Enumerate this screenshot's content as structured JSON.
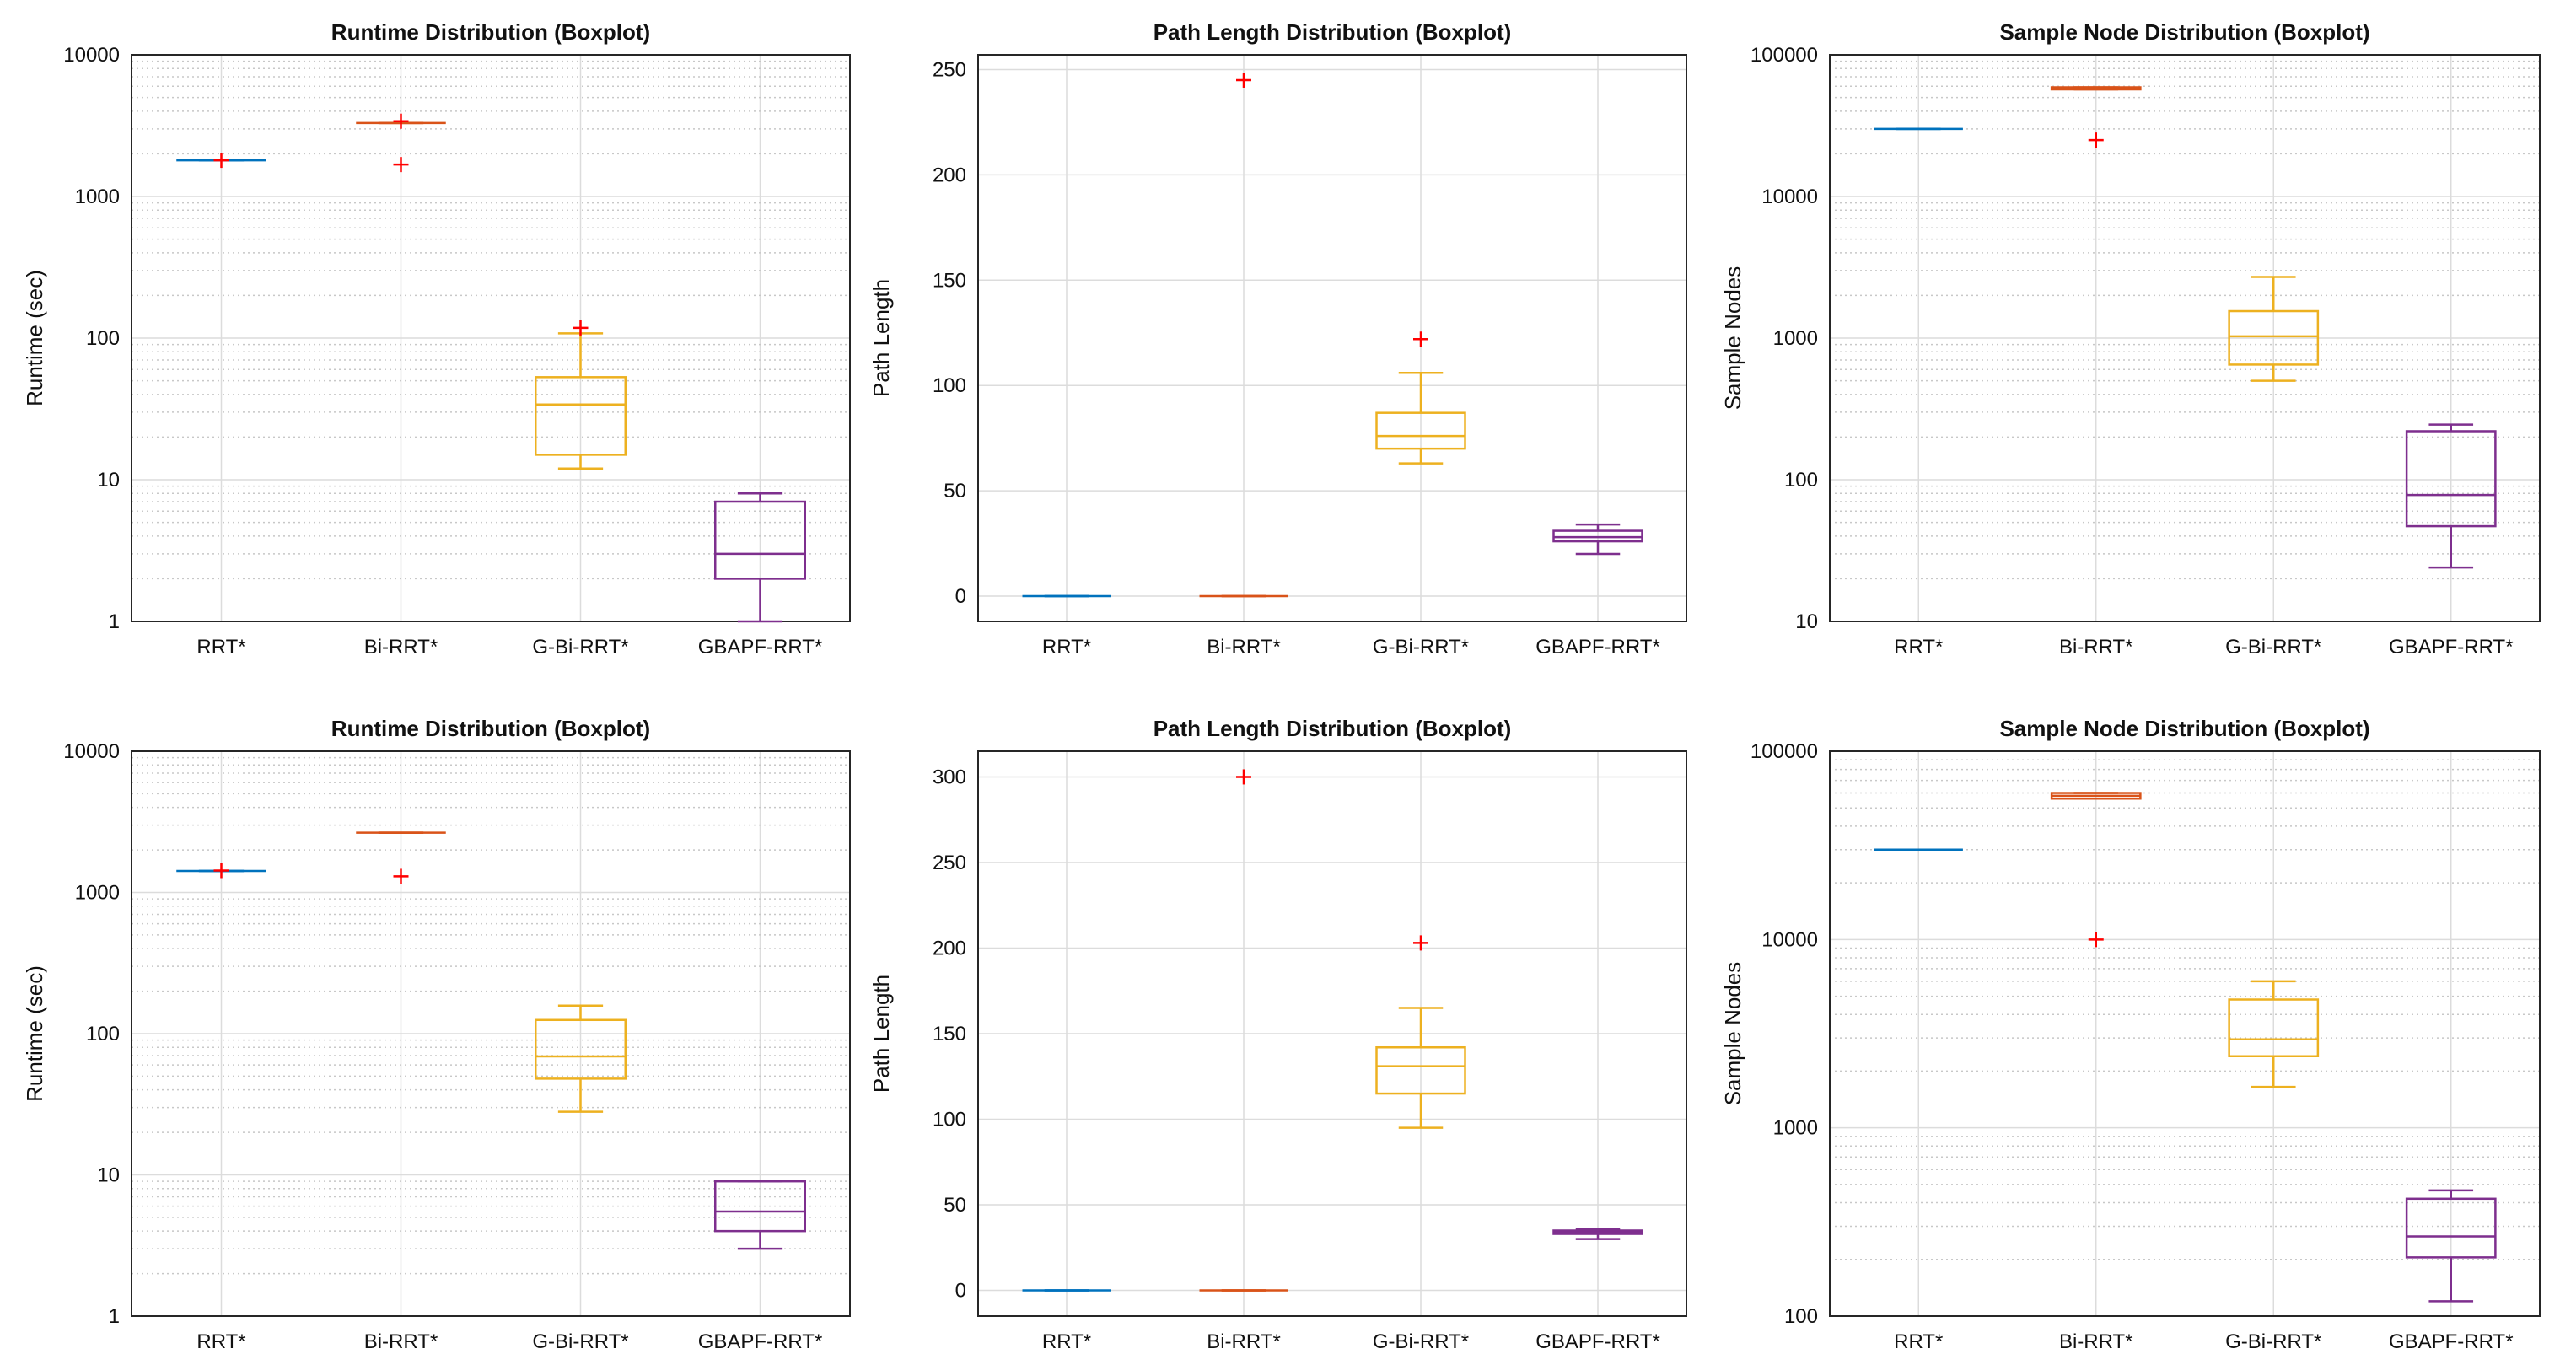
{
  "chart_data": [
    {
      "type": "box",
      "title": "Runtime Distribution (Boxplot)",
      "ylabel": "Runtime (sec)",
      "yscale": "log",
      "ylim": [
        1,
        10000
      ],
      "yticks": [
        1,
        10,
        100,
        1000,
        10000
      ],
      "ytick_labels": [
        "1",
        "10",
        "100",
        "1000",
        "10000"
      ],
      "grid": true,
      "categories": [
        "RRT*",
        "Bi-RRT*",
        "G-Bi-RRT*",
        "GBAPF-RRT*"
      ],
      "boxes": [
        {
          "q1": 1800,
          "median": 1800,
          "q3": 1800,
          "whisker_low": 1800,
          "whisker_high": 1800,
          "outliers": [
            1800
          ]
        },
        {
          "q1": 3300,
          "median": 3300,
          "q3": 3300,
          "whisker_low": 3300,
          "whisker_high": 3300,
          "outliers": [
            1680,
            3400
          ]
        },
        {
          "q1": 15,
          "median": 34,
          "q3": 53,
          "whisker_low": 12,
          "whisker_high": 108,
          "outliers": [
            118
          ]
        },
        {
          "q1": 2,
          "median": 3,
          "q3": 7,
          "whisker_low": 1,
          "whisker_high": 8,
          "outliers": []
        }
      ]
    },
    {
      "type": "box",
      "title": "Path Length Distribution (Boxplot)",
      "ylabel": "Path Length",
      "yscale": "linear",
      "ylim": [
        -12,
        257
      ],
      "yticks": [
        0,
        50,
        100,
        150,
        200,
        250
      ],
      "ytick_labels": [
        "0",
        "50",
        "100",
        "150",
        "200",
        "250"
      ],
      "grid": true,
      "categories": [
        "RRT*",
        "Bi-RRT*",
        "G-Bi-RRT*",
        "GBAPF-RRT*"
      ],
      "boxes": [
        {
          "q1": 0,
          "median": 0,
          "q3": 0,
          "whisker_low": 0,
          "whisker_high": 0,
          "outliers": []
        },
        {
          "q1": 0,
          "median": 0,
          "q3": 0,
          "whisker_low": 0,
          "whisker_high": 0,
          "outliers": [
            245
          ]
        },
        {
          "q1": 70,
          "median": 76,
          "q3": 87,
          "whisker_low": 63,
          "whisker_high": 106,
          "outliers": [
            122
          ]
        },
        {
          "q1": 26,
          "median": 28,
          "q3": 31,
          "whisker_low": 20,
          "whisker_high": 34,
          "outliers": []
        }
      ]
    },
    {
      "type": "box",
      "title": "Sample Node Distribution (Boxplot)",
      "ylabel": "Sample Nodes",
      "yscale": "log",
      "ylim": [
        10,
        100000
      ],
      "yticks": [
        10,
        100,
        1000,
        10000,
        100000
      ],
      "ytick_labels": [
        "10",
        "100",
        "1000",
        "10000",
        "100000"
      ],
      "grid": true,
      "categories": [
        "RRT*",
        "Bi-RRT*",
        "G-Bi-RRT*",
        "GBAPF-RRT*"
      ],
      "boxes": [
        {
          "q1": 30000,
          "median": 30000,
          "q3": 30000,
          "whisker_low": 30000,
          "whisker_high": 30000,
          "outliers": []
        },
        {
          "q1": 57000,
          "median": 58000,
          "q3": 59000,
          "whisker_low": 57000,
          "whisker_high": 59000,
          "outliers": [
            25000
          ]
        },
        {
          "q1": 650,
          "median": 1030,
          "q3": 1550,
          "whisker_low": 500,
          "whisker_high": 2700,
          "outliers": []
        },
        {
          "q1": 47,
          "median": 78,
          "q3": 220,
          "whisker_low": 24,
          "whisker_high": 245,
          "outliers": []
        }
      ]
    },
    {
      "type": "box",
      "title": "Runtime Distribution (Boxplot)",
      "ylabel": "Runtime (sec)",
      "yscale": "log",
      "ylim": [
        1,
        10000
      ],
      "yticks": [
        1,
        10,
        100,
        1000,
        10000
      ],
      "ytick_labels": [
        "1",
        "10",
        "100",
        "1000",
        "10000"
      ],
      "grid": true,
      "categories": [
        "RRT*",
        "Bi-RRT*",
        "G-Bi-RRT*",
        "GBAPF-RRT*"
      ],
      "boxes": [
        {
          "q1": 1420,
          "median": 1420,
          "q3": 1420,
          "whisker_low": 1420,
          "whisker_high": 1420,
          "outliers": [
            1430
          ]
        },
        {
          "q1": 2650,
          "median": 2650,
          "q3": 2650,
          "whisker_low": 2650,
          "whisker_high": 2650,
          "outliers": [
            1300
          ]
        },
        {
          "q1": 48,
          "median": 69,
          "q3": 125,
          "whisker_low": 28,
          "whisker_high": 158,
          "outliers": []
        },
        {
          "q1": 4,
          "median": 5.5,
          "q3": 9,
          "whisker_low": 3,
          "whisker_high": 9,
          "outliers": []
        }
      ]
    },
    {
      "type": "box",
      "title": "Path Length Distribution (Boxplot)",
      "ylabel": "Path Length",
      "yscale": "linear",
      "ylim": [
        -15,
        315
      ],
      "yticks": [
        0,
        50,
        100,
        150,
        200,
        250,
        300
      ],
      "ytick_labels": [
        "0",
        "50",
        "100",
        "150",
        "200",
        "250",
        "300"
      ],
      "grid": true,
      "categories": [
        "RRT*",
        "Bi-RRT*",
        "G-Bi-RRT*",
        "GBAPF-RRT*"
      ],
      "boxes": [
        {
          "q1": 0,
          "median": 0,
          "q3": 0,
          "whisker_low": 0,
          "whisker_high": 0,
          "outliers": []
        },
        {
          "q1": 0,
          "median": 0,
          "q3": 0,
          "whisker_low": 0,
          "whisker_high": 0,
          "outliers": [
            300
          ]
        },
        {
          "q1": 115,
          "median": 131,
          "q3": 142,
          "whisker_low": 95,
          "whisker_high": 165,
          "outliers": [
            203
          ]
        },
        {
          "q1": 33,
          "median": 34,
          "q3": 35,
          "whisker_low": 30,
          "whisker_high": 36,
          "outliers": []
        }
      ]
    },
    {
      "type": "box",
      "title": "Sample Node Distribution (Boxplot)",
      "ylabel": "Sample Nodes",
      "yscale": "log",
      "ylim": [
        100,
        100000
      ],
      "yticks": [
        100,
        1000,
        10000,
        100000
      ],
      "ytick_labels": [
        "100",
        "1000",
        "10000",
        "100000"
      ],
      "grid": true,
      "categories": [
        "RRT*",
        "Bi-RRT*",
        "G-Bi-RRT*",
        "GBAPF-RRT*"
      ],
      "boxes": [
        {
          "q1": 30000,
          "median": 30000,
          "q3": 30000,
          "whisker_low": 30000,
          "whisker_high": 30000,
          "outliers": []
        },
        {
          "q1": 56000,
          "median": 58000,
          "q3": 60000,
          "whisker_low": 56000,
          "whisker_high": 60000,
          "outliers": [
            10000
          ]
        },
        {
          "q1": 2400,
          "median": 2950,
          "q3": 4800,
          "whisker_low": 1650,
          "whisker_high": 6000,
          "outliers": []
        },
        {
          "q1": 205,
          "median": 265,
          "q3": 420,
          "whisker_low": 120,
          "whisker_high": 465,
          "outliers": []
        }
      ]
    }
  ],
  "colors": {
    "series": [
      "#0072bd",
      "#d95319",
      "#edb120",
      "#7e2f8e"
    ],
    "outlier": "#ff0000",
    "grid_major": "#dcdcdc",
    "grid_minor": "#c8c8c8",
    "axis": "#262626"
  }
}
